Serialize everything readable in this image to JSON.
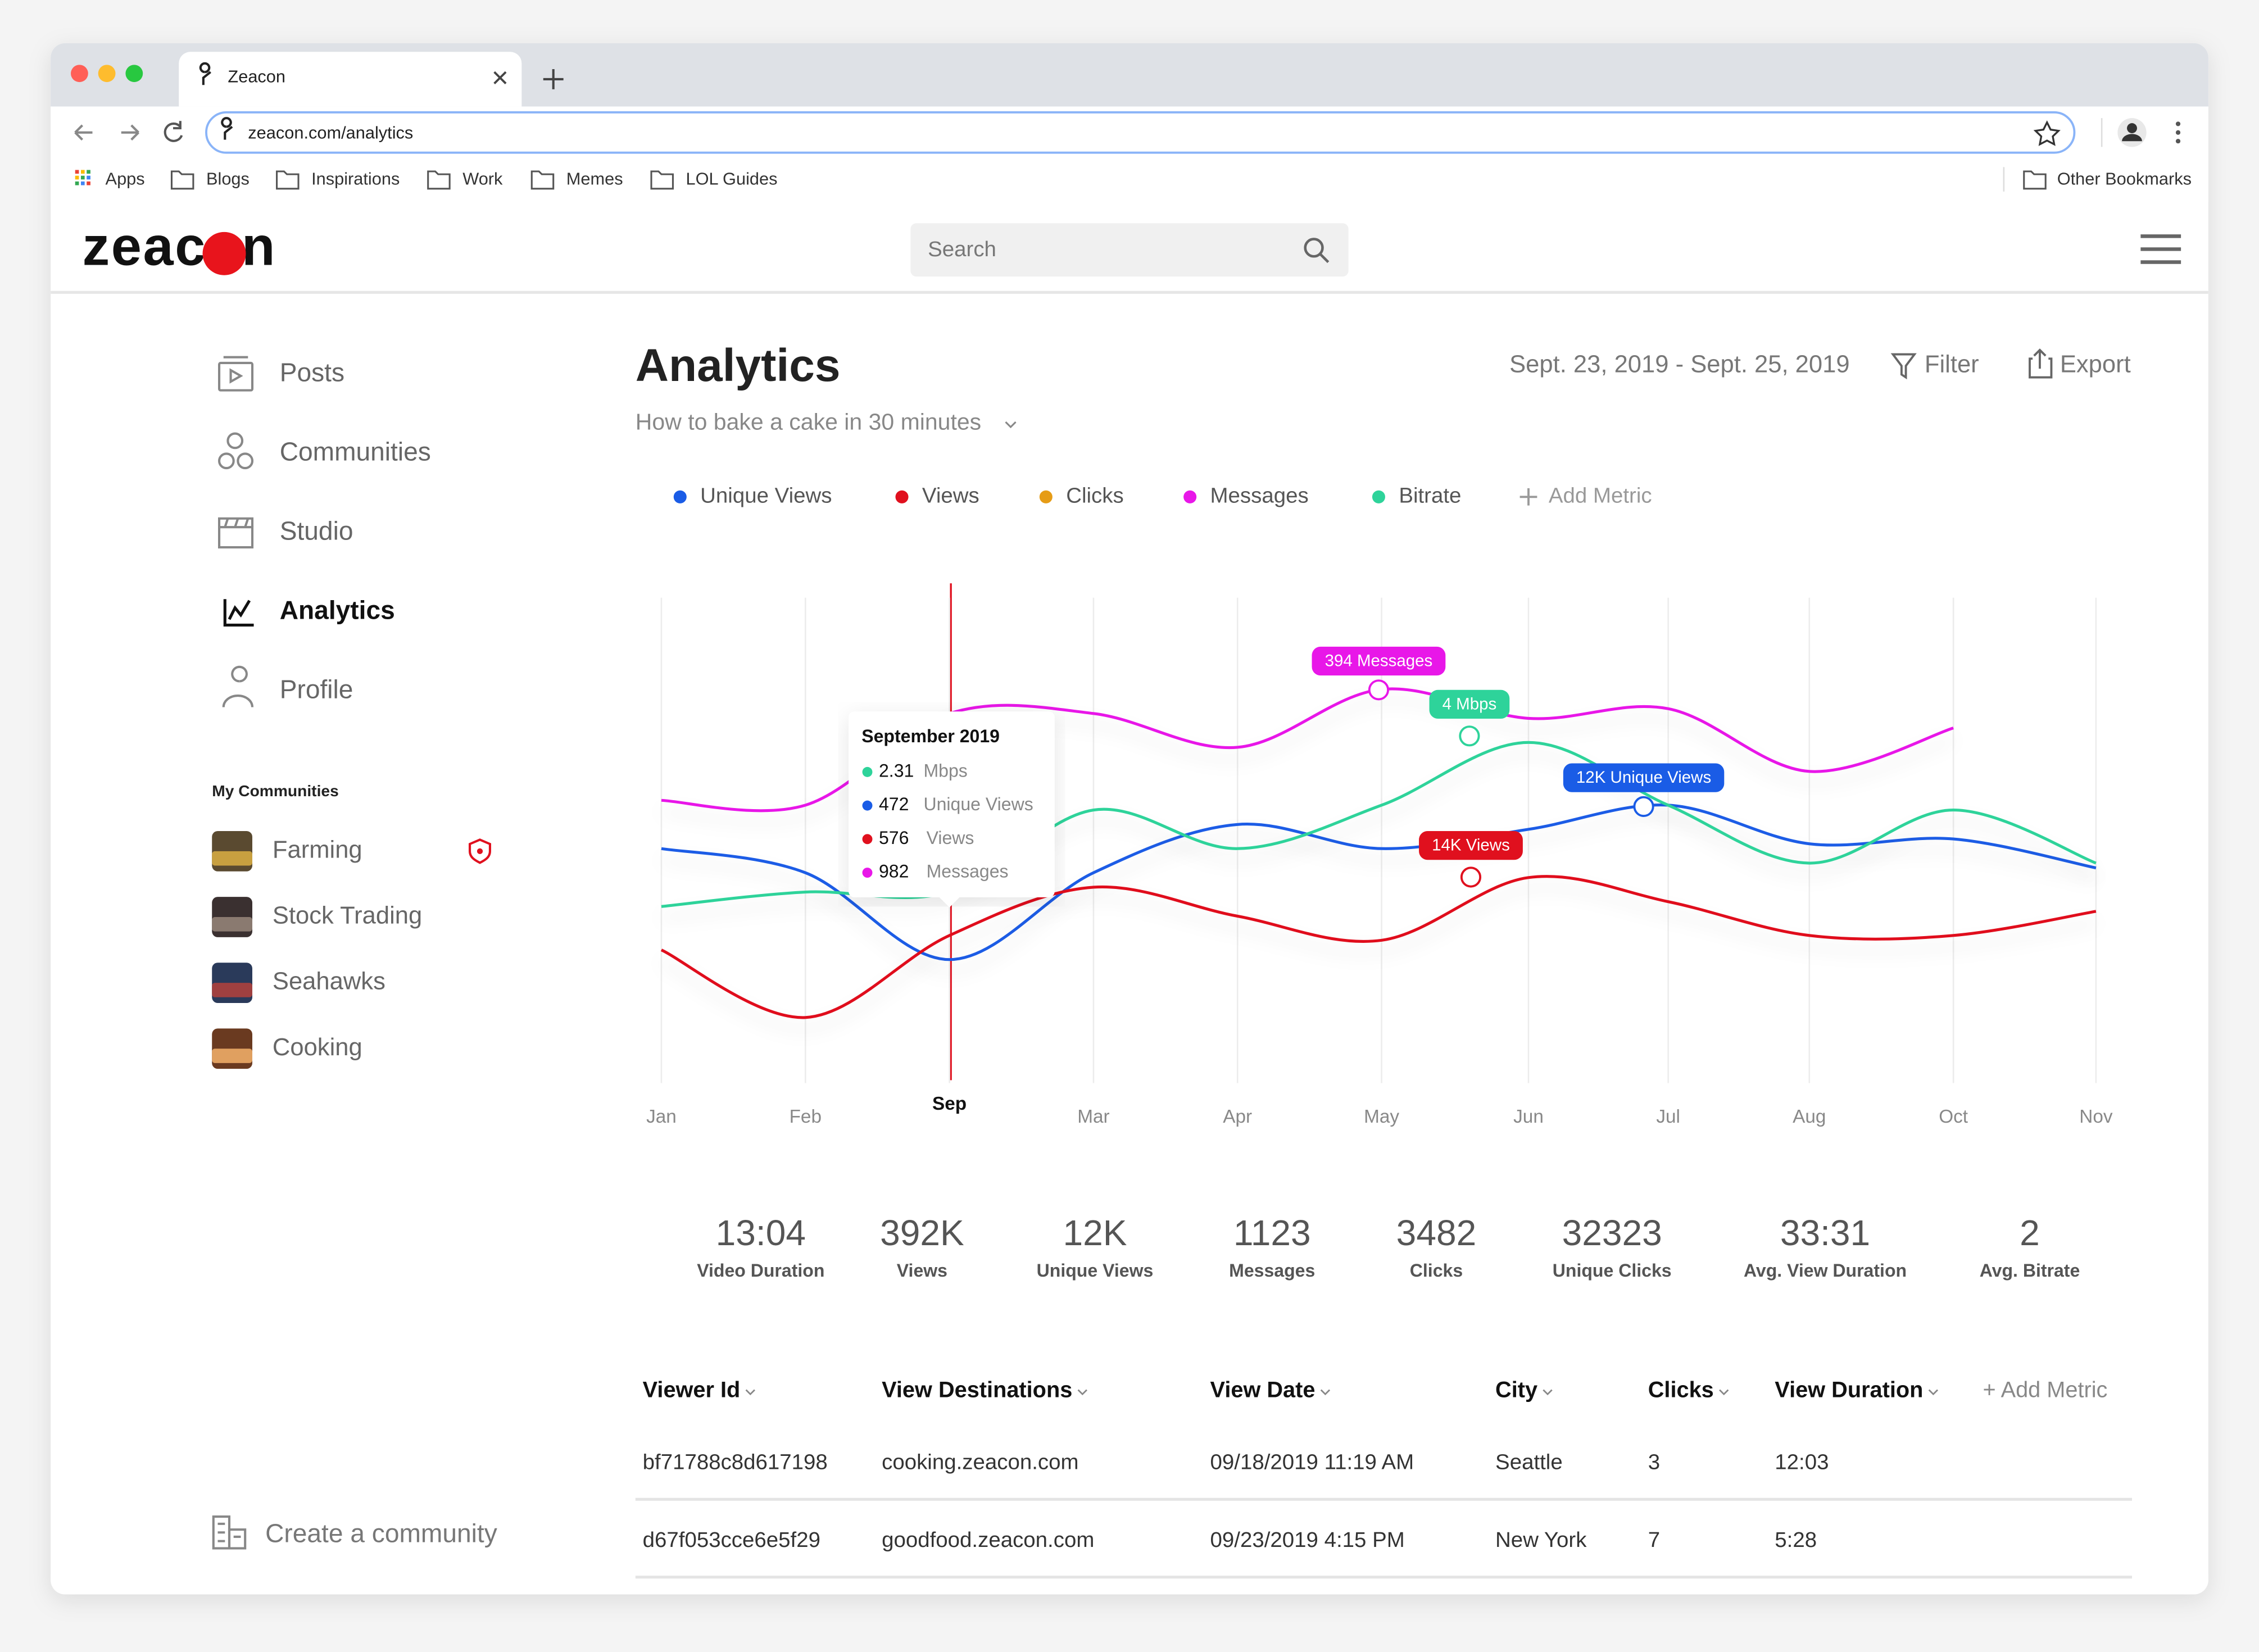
{
  "browser": {
    "tab_title": "Zeacon",
    "url": "zeacon.com/analytics",
    "bookmarks": [
      "Apps",
      "Blogs",
      "Inspirations",
      "Work",
      "Memes",
      "LOL Guides"
    ],
    "other_bookmarks": "Other Bookmarks"
  },
  "header": {
    "logo": "zeacon",
    "search_placeholder": "Search"
  },
  "sidebar": {
    "nav": [
      "Posts",
      "Communities",
      "Studio",
      "Analytics",
      "Profile"
    ],
    "my_communities_title": "My Communities",
    "communities": [
      "Farming",
      "Stock Trading",
      "Seahawks",
      "Cooking"
    ],
    "create": "Create a community"
  },
  "page": {
    "title": "Analytics",
    "video": "How to bake a cake in 30 minutes",
    "date_range": "Sept. 23, 2019 - Sept. 25, 2019",
    "filter": "Filter",
    "export": "Export"
  },
  "chart_data": {
    "type": "line",
    "categories": [
      "Jan",
      "Feb",
      "Sep",
      "Mar",
      "Apr",
      "May",
      "Jun",
      "Jul",
      "Aug",
      "Oct",
      "Nov"
    ],
    "add_metric": "Add Metric",
    "series": [
      {
        "name": "Unique Views",
        "color": "#1a5ce6",
        "values": [
          48,
          43,
          25,
          43,
          53,
          48,
          52,
          57,
          49,
          50,
          44
        ]
      },
      {
        "name": "Views",
        "color": "#e0101e",
        "values": [
          27,
          13,
          30,
          40,
          34,
          29,
          42,
          37,
          30,
          30,
          35
        ]
      },
      {
        "name": "Clicks",
        "color": "#e69c16",
        "values": [
          null,
          null,
          null,
          null,
          null,
          null,
          null,
          null,
          null,
          null,
          null
        ]
      },
      {
        "name": "Messages",
        "color": "#e817e8",
        "values": [
          58,
          57,
          76,
          76,
          69,
          81,
          75,
          77,
          64,
          73,
          null
        ]
      },
      {
        "name": "Bitrate",
        "color": "#2ed39a",
        "values": [
          36,
          39,
          39,
          56,
          48,
          57,
          70,
          57,
          45,
          56,
          45
        ]
      }
    ],
    "annotations": [
      "394 Messages",
      "4 Mbps",
      "12K Unique Views",
      "14K Views"
    ],
    "tooltip": {
      "title": "September 2019",
      "rows": [
        {
          "value": "2.31",
          "label": "Mbps",
          "color": "#2ed39a"
        },
        {
          "value": "472",
          "label": "Unique Views",
          "color": "#1a5ce6"
        },
        {
          "value": "576",
          "label": "Views",
          "color": "#e0101e"
        },
        {
          "value": "982",
          "label": "Messages",
          "color": "#e817e8"
        }
      ]
    }
  },
  "stats": [
    {
      "value": "13:04",
      "label": "Video Duration"
    },
    {
      "value": "392K",
      "label": "Views"
    },
    {
      "value": "12K",
      "label": "Unique Views"
    },
    {
      "value": "1123",
      "label": "Messages"
    },
    {
      "value": "3482",
      "label": "Clicks"
    },
    {
      "value": "32323",
      "label": "Unique Clicks"
    },
    {
      "value": "33:31",
      "label": "Avg. View Duration"
    },
    {
      "value": "2",
      "label": "Avg. Bitrate"
    }
  ],
  "table": {
    "columns": [
      "Viewer Id",
      "View Destinations",
      "View Date",
      "City",
      "Clicks",
      "View Duration"
    ],
    "add_metric": "+ Add Metric",
    "rows": [
      [
        "bf71788c8d617198",
        "cooking.zeacon.com",
        "09/18/2019 11:19 AM",
        "Seattle",
        "3",
        "12:03"
      ],
      [
        "d67f053cce6e5f29",
        "goodfood.zeacon.com",
        "09/23/2019 4:15 PM",
        "New York",
        "7",
        "5:28"
      ]
    ]
  }
}
